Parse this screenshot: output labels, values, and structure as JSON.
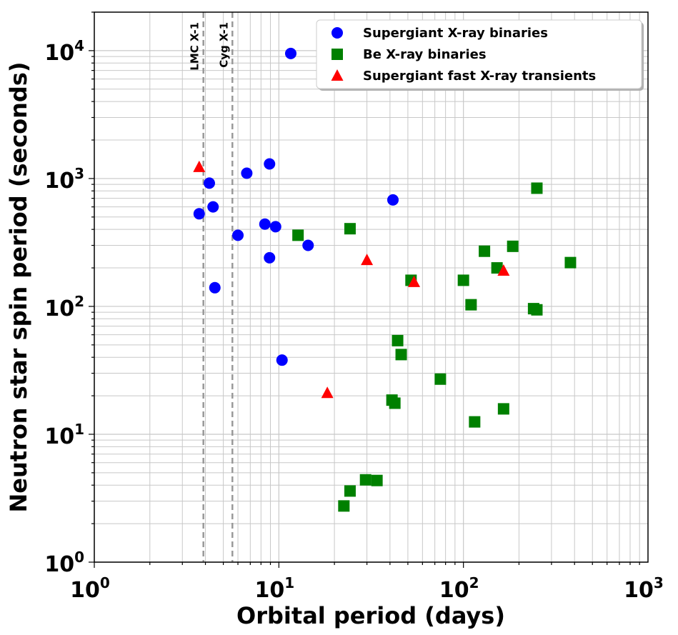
{
  "chart_data": {
    "type": "scatter",
    "title": "",
    "xlabel": "Orbital period (days)",
    "ylabel": "Neutron star spin period (seconds)",
    "xscale": "log",
    "yscale": "log",
    "xlim": [
      1,
      1000
    ],
    "ylim": [
      1,
      20000
    ],
    "x_ticks": [
      {
        "base": "10",
        "exp": "0",
        "value": 1
      },
      {
        "base": "10",
        "exp": "1",
        "value": 10
      },
      {
        "base": "10",
        "exp": "2",
        "value": 100
      },
      {
        "base": "10",
        "exp": "3",
        "value": 1000
      }
    ],
    "y_ticks": [
      {
        "base": "10",
        "exp": "0",
        "value": 1
      },
      {
        "base": "10",
        "exp": "1",
        "value": 10
      },
      {
        "base": "10",
        "exp": "2",
        "value": 100
      },
      {
        "base": "10",
        "exp": "3",
        "value": 1000
      },
      {
        "base": "10",
        "exp": "4",
        "value": 10000
      }
    ],
    "grid": "major and minor",
    "legend_position": "upper right",
    "vertical_lines": [
      {
        "label": "LMC X-1",
        "x": 3.9,
        "color": "#999999"
      },
      {
        "label": "Cyg X-1",
        "x": 5.6,
        "color": "#999999"
      }
    ],
    "series": [
      {
        "name": "Supergiant X-ray binaries",
        "marker": "circle",
        "color": "#0000ff",
        "points": [
          {
            "x": 11.6,
            "y": 9500
          },
          {
            "x": 8.9,
            "y": 1300
          },
          {
            "x": 6.7,
            "y": 1100
          },
          {
            "x": 4.2,
            "y": 920
          },
          {
            "x": 41.5,
            "y": 680
          },
          {
            "x": 4.4,
            "y": 600
          },
          {
            "x": 3.7,
            "y": 530
          },
          {
            "x": 8.4,
            "y": 440
          },
          {
            "x": 9.6,
            "y": 420
          },
          {
            "x": 6.0,
            "y": 360
          },
          {
            "x": 14.4,
            "y": 300
          },
          {
            "x": 8.9,
            "y": 240
          },
          {
            "x": 4.5,
            "y": 140
          },
          {
            "x": 10.4,
            "y": 38
          }
        ]
      },
      {
        "name": "Be X-ray binaries",
        "marker": "square",
        "color": "#008000",
        "points": [
          {
            "x": 250,
            "y": 840
          },
          {
            "x": 24.3,
            "y": 405
          },
          {
            "x": 12.7,
            "y": 360
          },
          {
            "x": 185,
            "y": 295
          },
          {
            "x": 130,
            "y": 270
          },
          {
            "x": 380,
            "y": 220
          },
          {
            "x": 152,
            "y": 200
          },
          {
            "x": 52,
            "y": 160
          },
          {
            "x": 100,
            "y": 160
          },
          {
            "x": 110,
            "y": 103
          },
          {
            "x": 240,
            "y": 96
          },
          {
            "x": 250,
            "y": 94
          },
          {
            "x": 44,
            "y": 54
          },
          {
            "x": 46,
            "y": 42
          },
          {
            "x": 75,
            "y": 27
          },
          {
            "x": 41,
            "y": 18.5
          },
          {
            "x": 42.5,
            "y": 17.5
          },
          {
            "x": 165,
            "y": 15.8
          },
          {
            "x": 115,
            "y": 12.5
          },
          {
            "x": 29.5,
            "y": 4.4
          },
          {
            "x": 34,
            "y": 4.35
          },
          {
            "x": 24.3,
            "y": 3.6
          },
          {
            "x": 22.5,
            "y": 2.75
          }
        ]
      },
      {
        "name": "Supergiant fast X-ray transients",
        "marker": "triangle",
        "color": "#ff0000",
        "points": [
          {
            "x": 3.7,
            "y": 1230
          },
          {
            "x": 30,
            "y": 230
          },
          {
            "x": 165,
            "y": 190
          },
          {
            "x": 54,
            "y": 155
          },
          {
            "x": 18.3,
            "y": 21
          }
        ]
      }
    ]
  }
}
